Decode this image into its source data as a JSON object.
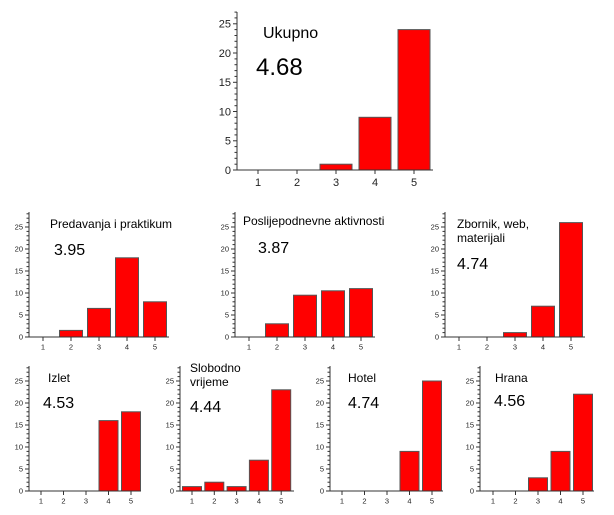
{
  "chart_data": [
    {
      "type": "bar",
      "title": "Ukupno",
      "mean_label": "4.68",
      "categories": [
        "1",
        "2",
        "3",
        "4",
        "5"
      ],
      "values": [
        0,
        0,
        1,
        9,
        24
      ],
      "yticks": [
        "0",
        "5",
        "10",
        "15",
        "20",
        "25"
      ],
      "ylim": [
        0,
        27
      ],
      "xlabel": "",
      "ylabel": "",
      "color": "#ff0000",
      "grid": false
    },
    {
      "type": "bar",
      "title": "Predavanja i praktikum",
      "mean_label": "3.95",
      "categories": [
        "1",
        "2",
        "3",
        "4",
        "5"
      ],
      "values": [
        0,
        1.5,
        6.5,
        18,
        8
      ],
      "yticks": [
        "0",
        "5",
        "10",
        "15",
        "20",
        "25"
      ],
      "ylim": [
        0,
        28
      ],
      "xlabel": "",
      "ylabel": "",
      "color": "#ff0000",
      "grid": false
    },
    {
      "type": "bar",
      "title": "Poslijepodnevne aktivnosti",
      "mean_label": "3.87",
      "categories": [
        "1",
        "2",
        "3",
        "4",
        "5"
      ],
      "values": [
        0,
        3,
        9.5,
        10.5,
        11
      ],
      "yticks": [
        "0",
        "5",
        "10",
        "15",
        "20",
        "25"
      ],
      "ylim": [
        0,
        28
      ],
      "xlabel": "",
      "ylabel": "",
      "color": "#ff0000",
      "grid": false
    },
    {
      "type": "bar",
      "title": [
        "Zbornik, web,",
        "materijali"
      ],
      "mean_label": "4.74",
      "categories": [
        "1",
        "2",
        "3",
        "4",
        "5"
      ],
      "values": [
        0,
        0,
        1,
        7,
        26
      ],
      "yticks": [
        "0",
        "5",
        "10",
        "15",
        "20",
        "25"
      ],
      "ylim": [
        0,
        28
      ],
      "xlabel": "",
      "ylabel": "",
      "color": "#ff0000",
      "grid": false
    },
    {
      "type": "bar",
      "title": "Izlet",
      "mean_label": "4.53",
      "categories": [
        "1",
        "2",
        "3",
        "4",
        "5"
      ],
      "values": [
        0,
        0,
        0,
        16,
        18
      ],
      "yticks": [
        "0",
        "5",
        "10",
        "15",
        "20",
        "25"
      ],
      "ylim": [
        0,
        28
      ],
      "xlabel": "",
      "ylabel": "",
      "color": "#ff0000",
      "grid": false
    },
    {
      "type": "bar",
      "title": [
        "Slobodno",
        "vrijeme"
      ],
      "mean_label": "4.44",
      "categories": [
        "1",
        "2",
        "3",
        "4",
        "5"
      ],
      "values": [
        1,
        2,
        1,
        7,
        23
      ],
      "yticks": [
        "0",
        "5",
        "10",
        "15",
        "20",
        "25"
      ],
      "ylim": [
        0,
        28
      ],
      "xlabel": "",
      "ylabel": "",
      "color": "#ff0000",
      "grid": false
    },
    {
      "type": "bar",
      "title": "Hotel",
      "mean_label": "4.74",
      "categories": [
        "1",
        "2",
        "3",
        "4",
        "5"
      ],
      "values": [
        0,
        0,
        0,
        9,
        25
      ],
      "yticks": [
        "0",
        "5",
        "10",
        "15",
        "20",
        "25"
      ],
      "ylim": [
        0,
        28
      ],
      "xlabel": "",
      "ylabel": "",
      "color": "#ff0000",
      "grid": false
    },
    {
      "type": "bar",
      "title": "Hrana",
      "mean_label": "4.56",
      "categories": [
        "1",
        "2",
        "3",
        "4",
        "5"
      ],
      "values": [
        0,
        0,
        3,
        9,
        22
      ],
      "yticks": [
        "0",
        "5",
        "10",
        "15",
        "20",
        "25"
      ],
      "ylim": [
        0,
        28
      ],
      "xlabel": "",
      "ylabel": "",
      "color": "#ff0000",
      "grid": false
    }
  ]
}
